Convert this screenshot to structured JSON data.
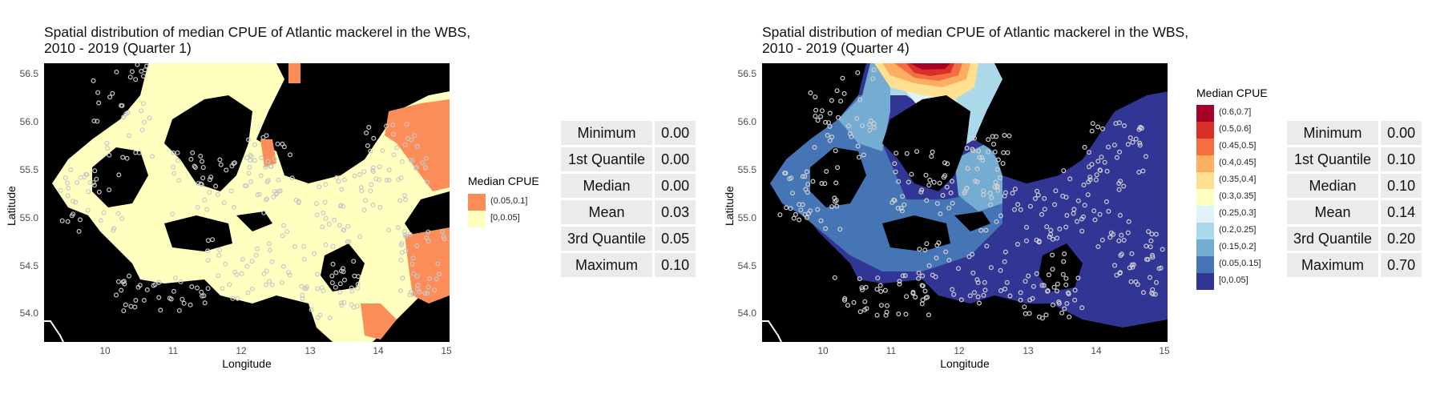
{
  "panels": [
    {
      "title_line1": "Spatial distribution of median CPUE of Atlantic mackerel in the WBS,",
      "title_line2": "2010 - 2019 (Quarter 1)",
      "xlabel": "Longitude",
      "ylabel": "Latitude",
      "xticks": [
        "10",
        "11",
        "12",
        "13",
        "14",
        "15"
      ],
      "yticks": [
        "56.5",
        "56.0",
        "55.5",
        "55.0",
        "54.5",
        "54.0"
      ],
      "legend_title": "Median CPUE",
      "legend": [
        {
          "label": "(0.05,0.1]",
          "color": "#fc8d59"
        },
        {
          "label": "[0,0.05]",
          "color": "#ffffbf"
        }
      ],
      "stats": [
        {
          "label": "Minimum",
          "value": "0.00"
        },
        {
          "label": "1st Quantile",
          "value": "0.00"
        },
        {
          "label": "Median",
          "value": "0.00"
        },
        {
          "label": "Mean",
          "value": "0.03"
        },
        {
          "label": "3rd Quantile",
          "value": "0.05"
        },
        {
          "label": "Maximum",
          "value": "0.10"
        }
      ]
    },
    {
      "title_line1": "Spatial distribution of median CPUE of Atlantic mackerel in the WBS,",
      "title_line2": "2010 - 2019 (Quarter 4)",
      "xlabel": "Longitude",
      "ylabel": "Latitude",
      "xticks": [
        "10",
        "11",
        "12",
        "13",
        "14",
        "15"
      ],
      "yticks": [
        "56.5",
        "56.0",
        "55.5",
        "55.0",
        "54.5",
        "54.0"
      ],
      "legend_title": "Median CPUE",
      "legend": [
        {
          "label": "(0.6,0.7]",
          "color": "#a50026"
        },
        {
          "label": "(0.5,0.6]",
          "color": "#d73027"
        },
        {
          "label": "(0.45,0.5]",
          "color": "#f46d43"
        },
        {
          "label": "(0.4,0.45]",
          "color": "#fdae61"
        },
        {
          "label": "(0.35,0.4]",
          "color": "#fee090"
        },
        {
          "label": "(0.3,0.35]",
          "color": "#ffffbf"
        },
        {
          "label": "(0.25,0.3]",
          "color": "#e0f3f8"
        },
        {
          "label": "(0.2,0.25]",
          "color": "#abd9e9"
        },
        {
          "label": "(0.15,0.2]",
          "color": "#74add1"
        },
        {
          "label": "(0.05,0.15]",
          "color": "#4575b4"
        },
        {
          "label": "[0,0.05]",
          "color": "#313695"
        }
      ],
      "stats": [
        {
          "label": "Minimum",
          "value": "0.00"
        },
        {
          "label": "1st Quantile",
          "value": "0.10"
        },
        {
          "label": "Median",
          "value": "0.10"
        },
        {
          "label": "Mean",
          "value": "0.14"
        },
        {
          "label": "3rd Quantile",
          "value": "0.20"
        },
        {
          "label": "Maximum",
          "value": "0.70"
        }
      ]
    }
  ]
}
